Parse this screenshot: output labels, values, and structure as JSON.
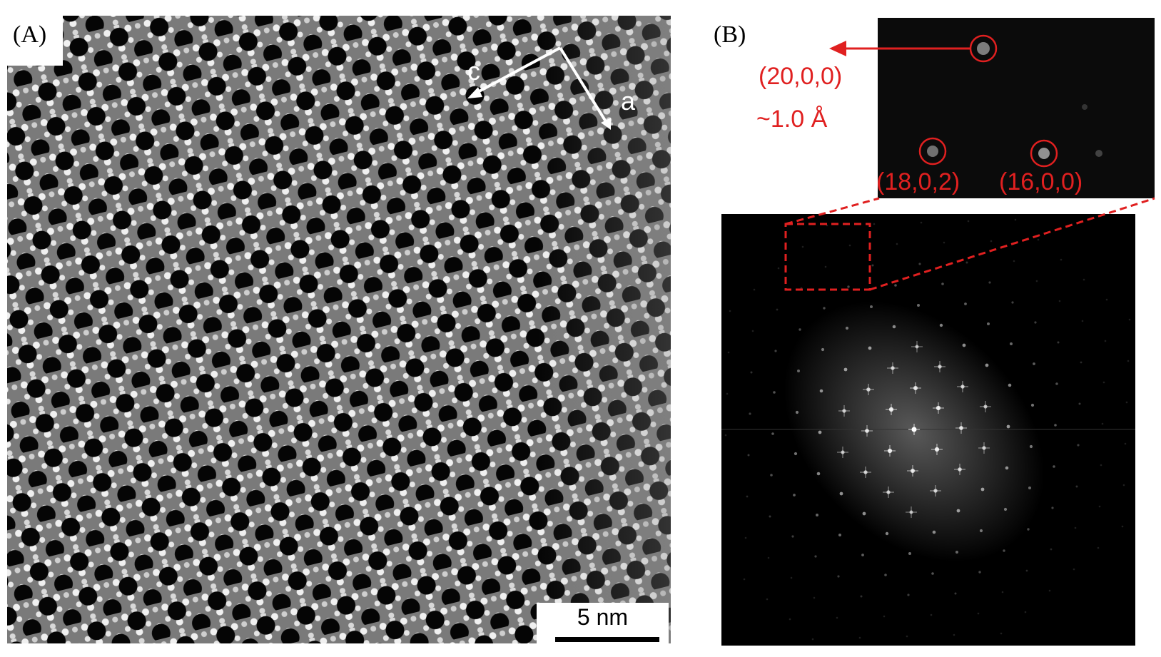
{
  "panels": {
    "a": {
      "label": "(A)",
      "direction_c": "c",
      "direction_a": "a",
      "scalebar_text": "5 nm"
    },
    "b": {
      "label": "(B)",
      "spot_top": "(20,0,0)",
      "resolution": "~1.0 Å",
      "spot_left": "(18,0,2)",
      "spot_right": "(16,0,0)"
    }
  },
  "colors": {
    "annotation_red": "#e02020",
    "lattice_white": "#ffffff",
    "background_dark": "#000000"
  }
}
